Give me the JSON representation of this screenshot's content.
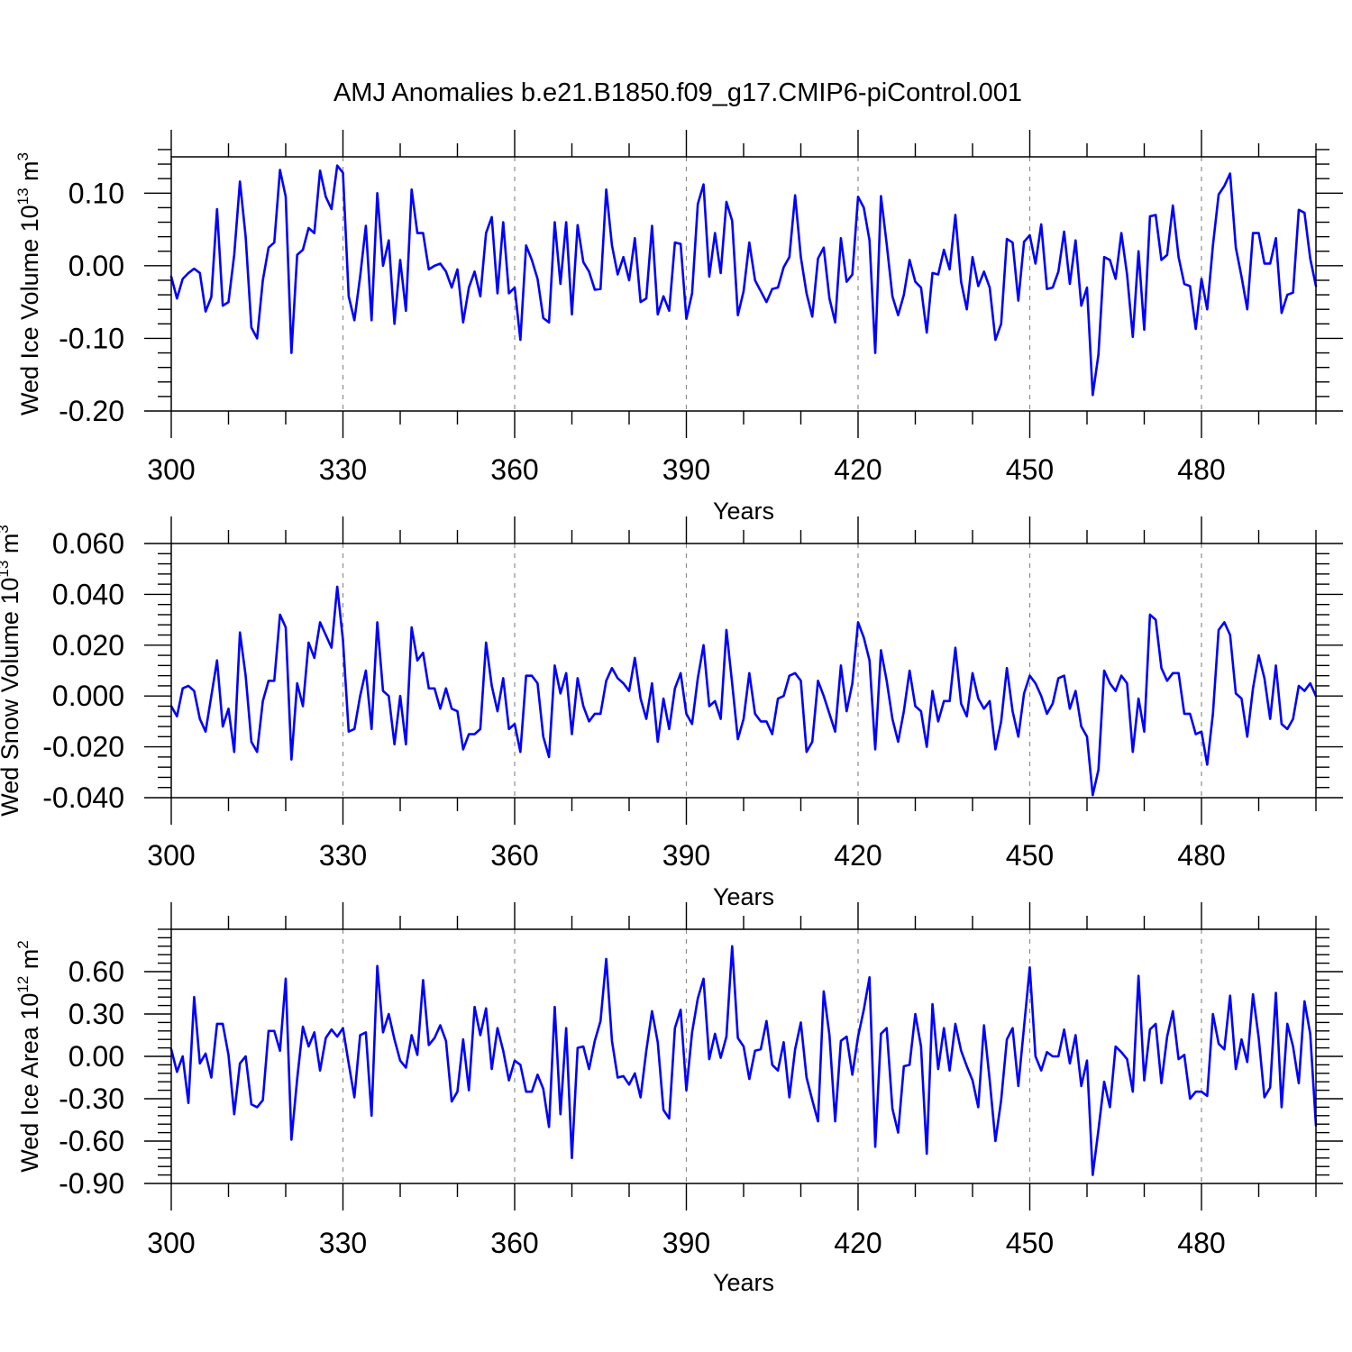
{
  "title": "AMJ Anomalies b.e21.B1850.f09_g17.CMIP6-piControl.001",
  "colors": {
    "series": "#0000ff",
    "axes": "#000000",
    "grid": "#8c8c8c"
  },
  "chart_data": [
    {
      "type": "line",
      "ylabel": "Wed Ice Volume 10",
      "ylabel_sup": "13",
      "ylabel_unit": "m",
      "ylabel_unit_sup": "3",
      "xlabel": "Years",
      "xlim": [
        300,
        500
      ],
      "ylim": [
        -0.2,
        0.15
      ],
      "xticks": [
        300,
        330,
        360,
        390,
        420,
        450,
        480
      ],
      "xtick_labels": [
        "300",
        "330",
        "360",
        "390",
        "420",
        "450",
        "480"
      ],
      "yticks": [
        -0.2,
        -0.1,
        0.0,
        0.1
      ],
      "ytick_labels": [
        "-0.20",
        "-0.10",
        "0.00",
        "0.10"
      ],
      "grid": "vertical dashed at major x ticks",
      "x_start": 300,
      "x_step": 1,
      "series": [
        {
          "values": [
            -0.015,
            -0.045,
            -0.018,
            -0.01,
            -0.004,
            -0.01,
            -0.063,
            -0.043,
            0.078,
            -0.055,
            -0.05,
            0.015,
            0.116,
            0.04,
            -0.085,
            -0.1,
            -0.02,
            0.025,
            0.032,
            0.132,
            0.095,
            -0.12,
            0.015,
            0.022,
            0.052,
            0.045,
            0.131,
            0.095,
            0.078,
            0.138,
            0.128,
            -0.042,
            -0.075,
            -0.015,
            0.055,
            -0.075,
            0.1,
            0.0,
            0.035,
            -0.08,
            0.008,
            -0.062,
            0.105,
            0.045,
            0.045,
            -0.005,
            0.0,
            0.003,
            -0.008,
            -0.03,
            -0.005,
            -0.078,
            -0.03,
            -0.008,
            -0.042,
            0.045,
            0.067,
            -0.038,
            0.06,
            -0.038,
            -0.03,
            -0.102,
            0.028,
            0.008,
            -0.018,
            -0.072,
            -0.078,
            0.06,
            -0.025,
            0.06,
            -0.067,
            0.056,
            0.005,
            -0.008,
            -0.033,
            -0.032,
            0.105,
            0.028,
            -0.012,
            0.012,
            -0.02,
            0.038,
            -0.05,
            -0.045,
            0.055,
            -0.067,
            -0.042,
            -0.062,
            0.032,
            0.03,
            -0.073,
            -0.038,
            0.085,
            0.112,
            -0.015,
            0.045,
            -0.01,
            0.088,
            0.062,
            -0.068,
            -0.035,
            0.032,
            -0.02,
            -0.035,
            -0.05,
            -0.032,
            -0.03,
            -0.002,
            0.012,
            0.097,
            0.012,
            -0.038,
            -0.07,
            0.01,
            0.025,
            -0.045,
            -0.078,
            0.038,
            -0.022,
            -0.012,
            0.095,
            0.08,
            0.035,
            -0.12,
            0.096,
            0.03,
            -0.042,
            -0.068,
            -0.04,
            0.008,
            -0.022,
            -0.03,
            -0.092,
            -0.01,
            -0.012,
            0.022,
            -0.005,
            0.07,
            -0.022,
            -0.06,
            0.012,
            -0.028,
            -0.008,
            -0.03,
            -0.102,
            -0.08,
            0.037,
            0.032,
            -0.048,
            0.033,
            0.042,
            0.003,
            0.057,
            -0.032,
            -0.03,
            -0.008,
            0.047,
            -0.025,
            0.035,
            -0.055,
            -0.03,
            -0.178,
            -0.122,
            0.012,
            0.008,
            -0.018,
            0.045,
            -0.012,
            -0.098,
            0.02,
            -0.088,
            0.068,
            0.07,
            0.008,
            0.015,
            0.083,
            0.012,
            -0.025,
            -0.028,
            -0.087,
            -0.018,
            -0.06,
            0.028,
            0.098,
            0.11,
            0.127,
            0.025,
            -0.015,
            -0.06,
            0.045,
            0.045,
            0.003,
            0.003,
            0.038,
            -0.065,
            -0.04,
            -0.037,
            0.077,
            0.073,
            0.01,
            -0.028
          ]
        }
      ]
    },
    {
      "type": "line",
      "ylabel": "Wed Snow Volume 10",
      "ylabel_sup": "13",
      "ylabel_unit": "m",
      "ylabel_unit_sup": "3",
      "xlabel": "Years",
      "xlim": [
        300,
        500
      ],
      "ylim": [
        -0.04,
        0.06
      ],
      "xticks": [
        300,
        330,
        360,
        390,
        420,
        450,
        480
      ],
      "xtick_labels": [
        "300",
        "330",
        "360",
        "390",
        "420",
        "450",
        "480"
      ],
      "yticks": [
        -0.04,
        -0.02,
        0.0,
        0.02,
        0.04,
        0.06
      ],
      "ytick_labels": [
        "-0.040",
        "-0.020",
        "0.000",
        "0.020",
        "0.040",
        "0.060"
      ],
      "grid": "vertical dashed at major x ticks",
      "x_start": 300,
      "x_step": 1,
      "series": [
        {
          "values": [
            -0.004,
            -0.008,
            0.003,
            0.004,
            0.002,
            -0.009,
            -0.014,
            0.0,
            0.014,
            -0.012,
            -0.005,
            -0.022,
            0.025,
            0.008,
            -0.018,
            -0.022,
            -0.002,
            0.006,
            0.006,
            0.032,
            0.027,
            -0.025,
            0.005,
            -0.004,
            0.021,
            0.015,
            0.029,
            0.024,
            0.019,
            0.043,
            0.022,
            -0.014,
            -0.013,
            0.0,
            0.01,
            -0.013,
            0.029,
            0.002,
            0.0,
            -0.019,
            0.0,
            -0.019,
            0.027,
            0.014,
            0.017,
            0.003,
            0.003,
            -0.005,
            0.003,
            -0.005,
            -0.006,
            -0.021,
            -0.015,
            -0.015,
            -0.013,
            0.021,
            0.004,
            -0.006,
            0.007,
            -0.013,
            -0.011,
            -0.022,
            0.008,
            0.008,
            0.005,
            -0.016,
            -0.024,
            0.012,
            0.001,
            0.009,
            -0.015,
            0.007,
            -0.004,
            -0.01,
            -0.007,
            -0.007,
            0.006,
            0.011,
            0.007,
            0.005,
            0.002,
            0.015,
            -0.001,
            -0.009,
            0.005,
            -0.018,
            -0.001,
            -0.013,
            0.003,
            0.009,
            -0.007,
            -0.011,
            0.007,
            0.02,
            -0.004,
            -0.002,
            -0.009,
            0.026,
            0.005,
            -0.017,
            -0.009,
            0.009,
            -0.007,
            -0.01,
            -0.01,
            -0.015,
            -0.001,
            0.0,
            0.008,
            0.009,
            0.006,
            -0.022,
            -0.018,
            0.006,
            0.0,
            -0.007,
            -0.014,
            0.012,
            -0.006,
            0.005,
            0.029,
            0.023,
            0.014,
            -0.021,
            0.018,
            0.006,
            -0.009,
            -0.018,
            -0.006,
            0.01,
            -0.004,
            -0.006,
            -0.02,
            0.002,
            -0.01,
            -0.002,
            -0.002,
            0.019,
            -0.003,
            -0.008,
            0.009,
            -0.001,
            -0.005,
            -0.002,
            -0.021,
            -0.01,
            0.011,
            -0.006,
            -0.016,
            0.001,
            0.008,
            0.005,
            0.0,
            -0.007,
            -0.003,
            0.007,
            0.008,
            -0.005,
            0.002,
            -0.012,
            -0.016,
            -0.039,
            -0.029,
            0.01,
            0.005,
            0.002,
            0.008,
            0.005,
            -0.022,
            -0.001,
            -0.014,
            0.032,
            0.03,
            0.011,
            0.006,
            0.009,
            0.009,
            -0.007,
            -0.007,
            -0.015,
            -0.014,
            -0.027,
            -0.007,
            0.026,
            0.029,
            0.024,
            0.001,
            -0.001,
            -0.016,
            0.003,
            0.016,
            0.007,
            -0.009,
            0.012,
            -0.011,
            -0.013,
            -0.009,
            0.004,
            0.002,
            0.005,
            0.0
          ]
        }
      ]
    },
    {
      "type": "line",
      "ylabel": "Wed Ice Area 10",
      "ylabel_sup": "12",
      "ylabel_unit": "m",
      "ylabel_unit_sup": "2",
      "xlabel": "Years",
      "xlim": [
        300,
        500
      ],
      "ylim": [
        -0.9,
        0.9
      ],
      "xticks": [
        300,
        330,
        360,
        390,
        420,
        450,
        480
      ],
      "xtick_labels": [
        "300",
        "330",
        "360",
        "390",
        "420",
        "450",
        "480"
      ],
      "yticks": [
        -0.9,
        -0.6,
        -0.3,
        0.0,
        0.3,
        0.6
      ],
      "ytick_labels": [
        "-0.90",
        "-0.60",
        "-0.30",
        "0.00",
        "0.30",
        "0.60"
      ],
      "grid": "vertical dashed at major x ticks",
      "x_start": 300,
      "x_step": 1,
      "series": [
        {
          "values": [
            0.05,
            -0.11,
            0.0,
            -0.33,
            0.42,
            -0.05,
            0.02,
            -0.15,
            0.23,
            0.23,
            0.01,
            -0.41,
            -0.05,
            0.0,
            -0.34,
            -0.36,
            -0.31,
            0.18,
            0.18,
            0.04,
            0.55,
            -0.59,
            -0.16,
            0.21,
            0.07,
            0.17,
            -0.1,
            0.13,
            0.19,
            0.14,
            0.2,
            -0.05,
            -0.29,
            0.15,
            0.17,
            -0.42,
            0.64,
            0.17,
            0.3,
            0.12,
            -0.03,
            -0.08,
            0.15,
            0.01,
            0.54,
            0.08,
            0.13,
            0.22,
            0.11,
            -0.32,
            -0.25,
            0.12,
            -0.24,
            0.35,
            0.15,
            0.34,
            -0.09,
            0.2,
            0.04,
            -0.17,
            -0.03,
            -0.06,
            -0.25,
            -0.25,
            -0.13,
            -0.23,
            -0.5,
            0.35,
            -0.41,
            0.2,
            -0.72,
            0.06,
            0.07,
            -0.09,
            0.11,
            0.25,
            0.69,
            0.11,
            -0.15,
            -0.14,
            -0.2,
            -0.12,
            -0.29,
            0.04,
            0.32,
            0.1,
            -0.38,
            -0.44,
            0.2,
            0.33,
            -0.24,
            0.17,
            0.41,
            0.55,
            -0.02,
            0.16,
            -0.01,
            0.14,
            0.78,
            0.13,
            0.07,
            -0.16,
            0.04,
            0.05,
            0.25,
            -0.06,
            -0.1,
            0.1,
            -0.29,
            0.05,
            0.24,
            -0.15,
            -0.31,
            -0.46,
            0.46,
            0.15,
            -0.46,
            0.11,
            0.14,
            -0.13,
            0.14,
            0.33,
            0.56,
            -0.64,
            0.16,
            0.2,
            -0.37,
            -0.54,
            -0.07,
            -0.06,
            0.3,
            0.07,
            -0.69,
            0.37,
            -0.09,
            0.2,
            -0.1,
            0.23,
            0.04,
            -0.07,
            -0.17,
            -0.36,
            0.22,
            -0.17,
            -0.6,
            -0.31,
            0.12,
            0.2,
            -0.21,
            0.21,
            0.63,
            0.0,
            -0.1,
            0.03,
            0.0,
            0.0,
            0.19,
            -0.05,
            0.15,
            -0.21,
            -0.03,
            -0.84,
            -0.52,
            -0.18,
            -0.36,
            0.07,
            0.03,
            -0.02,
            -0.25,
            0.57,
            -0.17,
            0.19,
            0.23,
            -0.19,
            0.14,
            0.32,
            -0.02,
            0.01,
            -0.3,
            -0.25,
            -0.25,
            -0.28,
            0.3,
            0.09,
            0.05,
            0.43,
            -0.09,
            0.12,
            -0.04,
            0.44,
            0.13,
            -0.29,
            -0.22,
            0.45,
            -0.36,
            0.23,
            0.07,
            -0.19,
            0.39,
            0.16,
            -0.49
          ]
        }
      ]
    }
  ]
}
